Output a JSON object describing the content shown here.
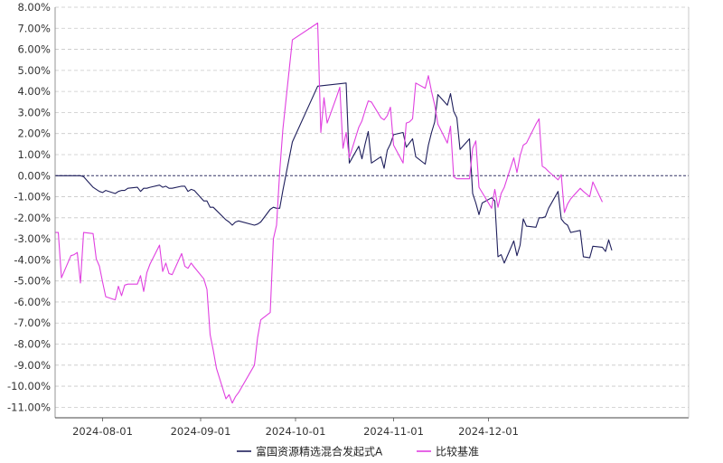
{
  "chart_data": {
    "type": "line",
    "title": "",
    "xlabel": "",
    "ylabel": "",
    "x_range": [
      "2024-07-17",
      "2024-12-31"
    ],
    "x_ticks": [
      "2024-08-01",
      "2024-09-01",
      "2024-10-01",
      "2024-11-01",
      "2024-12-01"
    ],
    "y_unit": "%",
    "ylim": [
      -11.5,
      8.0
    ],
    "y_ticks": [
      8,
      7,
      6,
      5,
      4,
      3,
      2,
      1,
      0,
      -1,
      -2,
      -3,
      -4,
      -5,
      -6,
      -7,
      -8,
      -9,
      -10,
      -11
    ],
    "y_tick_labels": [
      "8.00%",
      "7.00%",
      "6.00%",
      "5.00%",
      "4.00%",
      "3.00%",
      "2.00%",
      "1.00%",
      "0.00%",
      "-1.00%",
      "-2.00%",
      "-3.00%",
      "-4.00%",
      "-5.00%",
      "-6.00%",
      "-7.00%",
      "-8.00%",
      "-9.00%",
      "-10.00%",
      "-11.00%"
    ],
    "grid": "horizontal dashed",
    "legend_position": "bottom-center",
    "series": [
      {
        "name": "富国资源精选混合发起式A",
        "color": "#1f1f5c",
        "points": [
          [
            "2024-07-17",
            0.0
          ],
          [
            "2024-07-25",
            0.0
          ],
          [
            "2024-07-26",
            -0.05
          ],
          [
            "2024-07-29",
            -0.55
          ],
          [
            "2024-07-30",
            -0.65
          ],
          [
            "2024-07-31",
            -0.75
          ],
          [
            "2024-08-01",
            -0.8
          ],
          [
            "2024-08-02",
            -0.7
          ],
          [
            "2024-08-05",
            -0.85
          ],
          [
            "2024-08-06",
            -0.75
          ],
          [
            "2024-08-07",
            -0.7
          ],
          [
            "2024-08-08",
            -0.7
          ],
          [
            "2024-08-09",
            -0.6
          ],
          [
            "2024-08-12",
            -0.55
          ],
          [
            "2024-08-13",
            -0.75
          ],
          [
            "2024-08-14",
            -0.6
          ],
          [
            "2024-08-15",
            -0.6
          ],
          [
            "2024-08-16",
            -0.55
          ],
          [
            "2024-08-19",
            -0.45
          ],
          [
            "2024-08-20",
            -0.55
          ],
          [
            "2024-08-21",
            -0.5
          ],
          [
            "2024-08-22",
            -0.6
          ],
          [
            "2024-08-23",
            -0.6
          ],
          [
            "2024-08-26",
            -0.5
          ],
          [
            "2024-08-27",
            -0.5
          ],
          [
            "2024-08-28",
            -0.75
          ],
          [
            "2024-08-29",
            -0.65
          ],
          [
            "2024-08-30",
            -0.7
          ],
          [
            "2024-09-02",
            -1.2
          ],
          [
            "2024-09-03",
            -1.2
          ],
          [
            "2024-09-04",
            -1.5
          ],
          [
            "2024-09-05",
            -1.5
          ],
          [
            "2024-09-06",
            -1.65
          ],
          [
            "2024-09-09",
            -2.1
          ],
          [
            "2024-09-10",
            -2.2
          ],
          [
            "2024-09-11",
            -2.35
          ],
          [
            "2024-09-12",
            -2.2
          ],
          [
            "2024-09-13",
            -2.15
          ],
          [
            "2024-09-18",
            -2.35
          ],
          [
            "2024-09-19",
            -2.3
          ],
          [
            "2024-09-20",
            -2.2
          ],
          [
            "2024-09-23",
            -1.6
          ],
          [
            "2024-09-24",
            -1.5
          ],
          [
            "2024-09-25",
            -1.55
          ],
          [
            "2024-09-26",
            -1.55
          ],
          [
            "2024-09-27",
            -0.7
          ],
          [
            "2024-09-30",
            1.6
          ],
          [
            "2024-10-08",
            4.25
          ],
          [
            "2024-10-17",
            4.4
          ],
          [
            "2024-10-18",
            0.6
          ],
          [
            "2024-10-21",
            1.4
          ],
          [
            "2024-10-22",
            0.8
          ],
          [
            "2024-10-23",
            1.5
          ],
          [
            "2024-10-24",
            2.1
          ],
          [
            "2024-10-25",
            0.6
          ],
          [
            "2024-10-28",
            0.9
          ],
          [
            "2024-10-29",
            0.35
          ],
          [
            "2024-10-30",
            1.2
          ],
          [
            "2024-10-31",
            1.5
          ],
          [
            "2024-11-01",
            1.95
          ],
          [
            "2024-11-04",
            2.05
          ],
          [
            "2024-11-05",
            1.35
          ],
          [
            "2024-11-06",
            1.55
          ],
          [
            "2024-11-07",
            1.75
          ],
          [
            "2024-11-08",
            0.9
          ],
          [
            "2024-11-11",
            0.55
          ],
          [
            "2024-11-12",
            1.45
          ],
          [
            "2024-11-13",
            2.05
          ],
          [
            "2024-11-14",
            2.55
          ],
          [
            "2024-11-15",
            3.85
          ],
          [
            "2024-11-18",
            3.35
          ],
          [
            "2024-11-19",
            3.9
          ],
          [
            "2024-11-20",
            3.05
          ],
          [
            "2024-11-21",
            2.75
          ],
          [
            "2024-11-22",
            1.25
          ],
          [
            "2024-11-25",
            1.75
          ],
          [
            "2024-11-26",
            -0.85
          ],
          [
            "2024-11-27",
            -1.3
          ],
          [
            "2024-11-28",
            -1.85
          ],
          [
            "2024-11-29",
            -1.3
          ],
          [
            "2024-12-02",
            -1.05
          ],
          [
            "2024-12-03",
            -1.2
          ],
          [
            "2024-12-04",
            -3.85
          ],
          [
            "2024-12-05",
            -3.75
          ],
          [
            "2024-12-06",
            -4.15
          ],
          [
            "2024-12-09",
            -3.1
          ],
          [
            "2024-12-10",
            -3.8
          ],
          [
            "2024-12-11",
            -3.3
          ],
          [
            "2024-12-12",
            -2.05
          ],
          [
            "2024-12-13",
            -2.4
          ],
          [
            "2024-12-16",
            -2.45
          ],
          [
            "2024-12-17",
            -2.0
          ],
          [
            "2024-12-18",
            -2.0
          ],
          [
            "2024-12-19",
            -1.95
          ],
          [
            "2024-12-20",
            -1.55
          ],
          [
            "2024-12-23",
            -0.75
          ],
          [
            "2024-12-24",
            -2.05
          ],
          [
            "2024-12-25",
            -2.25
          ],
          [
            "2024-12-26",
            -2.35
          ],
          [
            "2024-12-27",
            -2.7
          ],
          [
            "2024-12-30",
            -2.6
          ],
          [
            "2024-12-31",
            -3.85
          ],
          [
            "2025-01-02",
            -3.9
          ],
          [
            "2025-01-03",
            -3.35
          ],
          [
            "2025-01-06",
            -3.4
          ],
          [
            "2025-01-07",
            -3.6
          ],
          [
            "2025-01-08",
            -3.05
          ],
          [
            "2025-01-09",
            -3.55
          ]
        ]
      },
      {
        "name": "比较基准",
        "color": "#e040e0",
        "points": [
          [
            "2024-07-17",
            -2.7
          ],
          [
            "2024-07-18",
            -2.7
          ],
          [
            "2024-07-19",
            -4.85
          ],
          [
            "2024-07-22",
            -3.8
          ],
          [
            "2024-07-23",
            -3.75
          ],
          [
            "2024-07-24",
            -3.65
          ],
          [
            "2024-07-25",
            -5.1
          ],
          [
            "2024-07-26",
            -2.7
          ],
          [
            "2024-07-29",
            -2.75
          ],
          [
            "2024-07-30",
            -3.95
          ],
          [
            "2024-07-31",
            -4.3
          ],
          [
            "2024-08-01",
            -5.05
          ],
          [
            "2024-08-02",
            -5.75
          ],
          [
            "2024-08-05",
            -5.9
          ],
          [
            "2024-08-06",
            -5.25
          ],
          [
            "2024-08-07",
            -5.7
          ],
          [
            "2024-08-08",
            -5.2
          ],
          [
            "2024-08-09",
            -5.15
          ],
          [
            "2024-08-12",
            -5.15
          ],
          [
            "2024-08-13",
            -4.75
          ],
          [
            "2024-08-14",
            -5.5
          ],
          [
            "2024-08-15",
            -4.6
          ],
          [
            "2024-08-16",
            -4.2
          ],
          [
            "2024-08-19",
            -3.3
          ],
          [
            "2024-08-20",
            -4.55
          ],
          [
            "2024-08-21",
            -4.15
          ],
          [
            "2024-08-22",
            -4.65
          ],
          [
            "2024-08-23",
            -4.7
          ],
          [
            "2024-08-26",
            -3.7
          ],
          [
            "2024-08-27",
            -4.3
          ],
          [
            "2024-08-28",
            -4.4
          ],
          [
            "2024-08-29",
            -4.15
          ],
          [
            "2024-08-30",
            -4.35
          ],
          [
            "2024-09-02",
            -4.9
          ],
          [
            "2024-09-03",
            -5.4
          ],
          [
            "2024-09-04",
            -7.55
          ],
          [
            "2024-09-05",
            -8.3
          ],
          [
            "2024-09-06",
            -9.15
          ],
          [
            "2024-09-09",
            -10.6
          ],
          [
            "2024-09-10",
            -10.4
          ],
          [
            "2024-09-11",
            -10.8
          ],
          [
            "2024-09-12",
            -10.5
          ],
          [
            "2024-09-13",
            -10.3
          ],
          [
            "2024-09-18",
            -9.0
          ],
          [
            "2024-09-19",
            -7.7
          ],
          [
            "2024-09-20",
            -6.85
          ],
          [
            "2024-09-23",
            -6.5
          ],
          [
            "2024-09-24",
            -3.0
          ],
          [
            "2024-09-25",
            -2.35
          ],
          [
            "2024-09-26",
            0.2
          ],
          [
            "2024-09-27",
            2.2
          ],
          [
            "2024-09-30",
            6.45
          ],
          [
            "2024-10-08",
            7.25
          ],
          [
            "2024-10-09",
            2.05
          ],
          [
            "2024-10-10",
            3.7
          ],
          [
            "2024-10-11",
            2.5
          ],
          [
            "2024-10-14",
            3.75
          ],
          [
            "2024-10-15",
            4.2
          ],
          [
            "2024-10-16",
            1.3
          ],
          [
            "2024-10-17",
            2.05
          ],
          [
            "2024-10-18",
            0.85
          ],
          [
            "2024-10-21",
            2.3
          ],
          [
            "2024-10-22",
            2.6
          ],
          [
            "2024-10-23",
            3.1
          ],
          [
            "2024-10-24",
            3.55
          ],
          [
            "2024-10-25",
            3.5
          ],
          [
            "2024-10-28",
            2.75
          ],
          [
            "2024-10-29",
            2.65
          ],
          [
            "2024-10-30",
            2.85
          ],
          [
            "2024-10-31",
            3.25
          ],
          [
            "2024-11-01",
            1.45
          ],
          [
            "2024-11-04",
            0.6
          ],
          [
            "2024-11-05",
            2.5
          ],
          [
            "2024-11-06",
            2.55
          ],
          [
            "2024-11-07",
            2.7
          ],
          [
            "2024-11-08",
            4.4
          ],
          [
            "2024-11-11",
            4.15
          ],
          [
            "2024-11-12",
            4.75
          ],
          [
            "2024-11-13",
            4.0
          ],
          [
            "2024-11-14",
            3.35
          ],
          [
            "2024-11-15",
            2.45
          ],
          [
            "2024-11-18",
            1.55
          ],
          [
            "2024-11-19",
            2.35
          ],
          [
            "2024-11-20",
            -0.05
          ],
          [
            "2024-11-21",
            -0.15
          ],
          [
            "2024-11-22",
            -0.15
          ],
          [
            "2024-11-25",
            -0.15
          ],
          [
            "2024-11-26",
            1.3
          ],
          [
            "2024-11-27",
            1.65
          ],
          [
            "2024-11-28",
            -0.55
          ],
          [
            "2024-11-29",
            -0.8
          ],
          [
            "2024-12-02",
            -1.55
          ],
          [
            "2024-12-03",
            -0.65
          ],
          [
            "2024-12-04",
            -1.5
          ],
          [
            "2024-12-05",
            -0.85
          ],
          [
            "2024-12-06",
            -0.55
          ],
          [
            "2024-12-09",
            0.85
          ],
          [
            "2024-12-10",
            0.15
          ],
          [
            "2024-12-11",
            0.95
          ],
          [
            "2024-12-12",
            1.45
          ],
          [
            "2024-12-13",
            1.55
          ],
          [
            "2024-12-16",
            2.45
          ],
          [
            "2024-12-17",
            2.7
          ],
          [
            "2024-12-18",
            0.45
          ],
          [
            "2024-12-19",
            0.35
          ],
          [
            "2024-12-20",
            0.2
          ],
          [
            "2024-12-23",
            -0.2
          ],
          [
            "2024-12-24",
            0.05
          ],
          [
            "2024-12-25",
            -1.75
          ],
          [
            "2024-12-26",
            -1.35
          ],
          [
            "2024-12-27",
            -1.1
          ],
          [
            "2024-12-30",
            -0.6
          ],
          [
            "2024-12-31",
            -0.75
          ],
          [
            "2025-01-02",
            -1.0
          ],
          [
            "2025-01-03",
            -0.3
          ],
          [
            "2025-01-06",
            -1.25
          ]
        ]
      }
    ]
  }
}
